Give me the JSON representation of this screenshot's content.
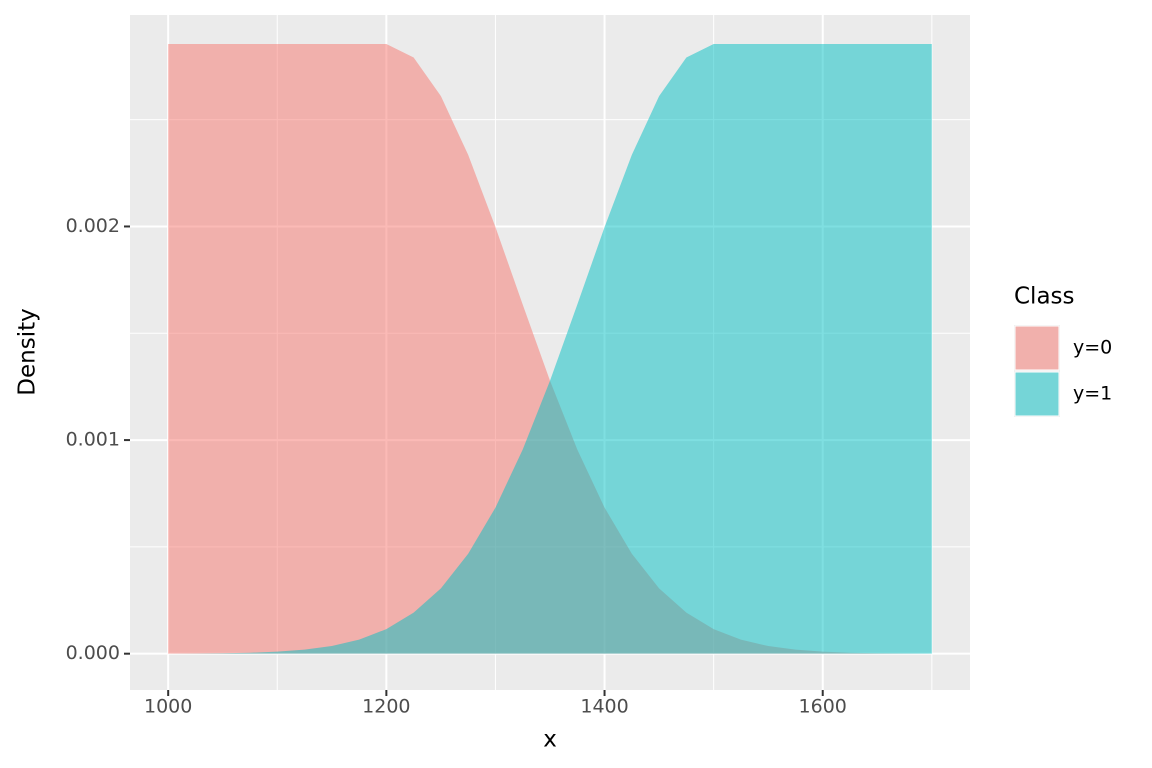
{
  "chart_data": {
    "type": "area",
    "x_label": "x",
    "y_label": "Density",
    "legend_title": "Class",
    "legend_position": "right",
    "grid": true,
    "xlim": [
      965,
      1735
    ],
    "ylim": [
      -0.00017,
      0.00299
    ],
    "xticks": [
      1000,
      1200,
      1400,
      1600
    ],
    "yticks": [
      {
        "value": 0,
        "label": "0.000"
      },
      {
        "value": 0.001,
        "label": "0.001"
      },
      {
        "value": 0.002,
        "label": "0.002"
      }
    ],
    "x": [
      1000,
      1025,
      1050,
      1075,
      1100,
      1125,
      1150,
      1175,
      1200,
      1225,
      1250,
      1275,
      1300,
      1325,
      1350,
      1375,
      1400,
      1425,
      1450,
      1475,
      1500,
      1525,
      1550,
      1575,
      1600,
      1625,
      1650,
      1675,
      1700
    ],
    "series": [
      {
        "name": "y=0",
        "color": "#F8766D",
        "values": [
          0.002854,
          0.002854,
          0.002854,
          0.002854,
          0.002854,
          0.002854,
          0.002854,
          0.002854,
          0.002854,
          0.002791,
          0.00261,
          0.002335,
          0.001997,
          0.001634,
          0.001278,
          0.000956,
          0.000684,
          0.000468,
          0.000306,
          0.000192,
          0.000115,
          6.56e-05,
          3.59e-05,
          1.88e-05,
          9.4e-06,
          4.5e-06,
          2.1e-06,
          1e-06,
          4e-07
        ]
      },
      {
        "name": "y=1",
        "color": "#00BFC4",
        "values": [
          4e-07,
          1e-06,
          2.1e-06,
          4.5e-06,
          9.4e-06,
          1.88e-05,
          3.59e-05,
          6.56e-05,
          0.000115,
          0.000192,
          0.000306,
          0.000468,
          0.000684,
          0.000956,
          0.001278,
          0.001634,
          0.001997,
          0.002335,
          0.00261,
          0.002791,
          0.002854,
          0.002854,
          0.002854,
          0.002854,
          0.002854,
          0.002854,
          0.002854,
          0.002854,
          0.002854
        ]
      }
    ]
  }
}
